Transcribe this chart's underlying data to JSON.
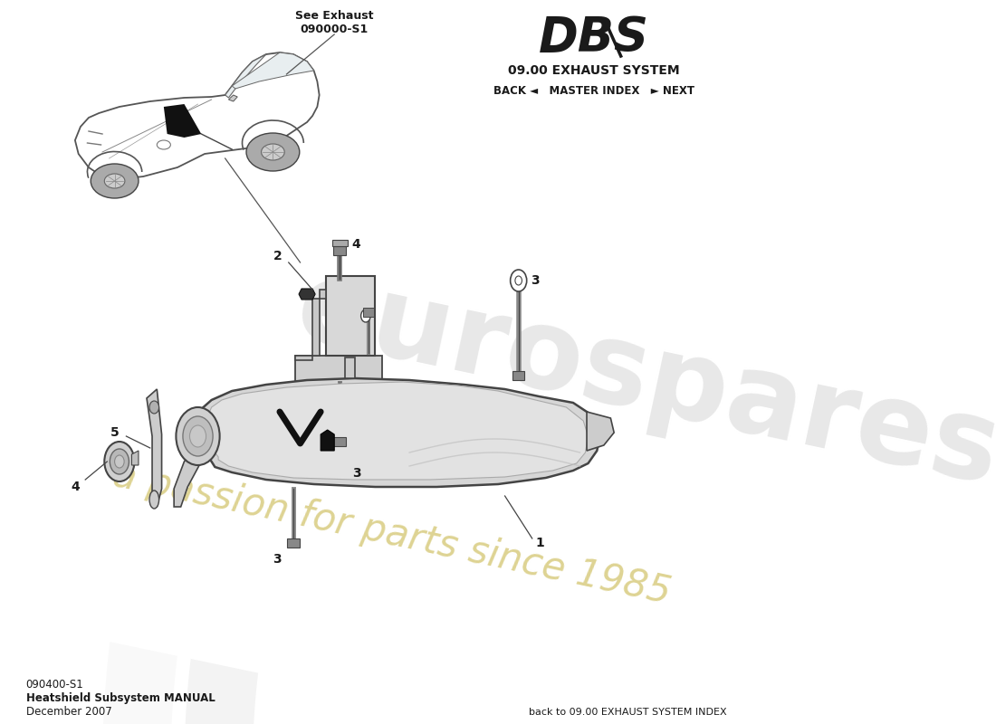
{
  "title_model": "DBS",
  "title_system": "09.00 EXHAUST SYSTEM",
  "title_nav": "BACK ◄   MASTER INDEX   ► NEXT",
  "doc_number": "090400-S1",
  "doc_title": "Heatshield Subsystem MANUAL",
  "doc_date": "December 2007",
  "footer_right": "back to 09.00 EXHAUST SYSTEM INDEX",
  "exhaust_ref": "See Exhaust\n090000-S1",
  "bg_color": "#ffffff",
  "text_color": "#1a1a1a",
  "wm_gray": "#e8e8e8",
  "wm_yellow": "#e8e0a0",
  "part_line_color": "#444444"
}
